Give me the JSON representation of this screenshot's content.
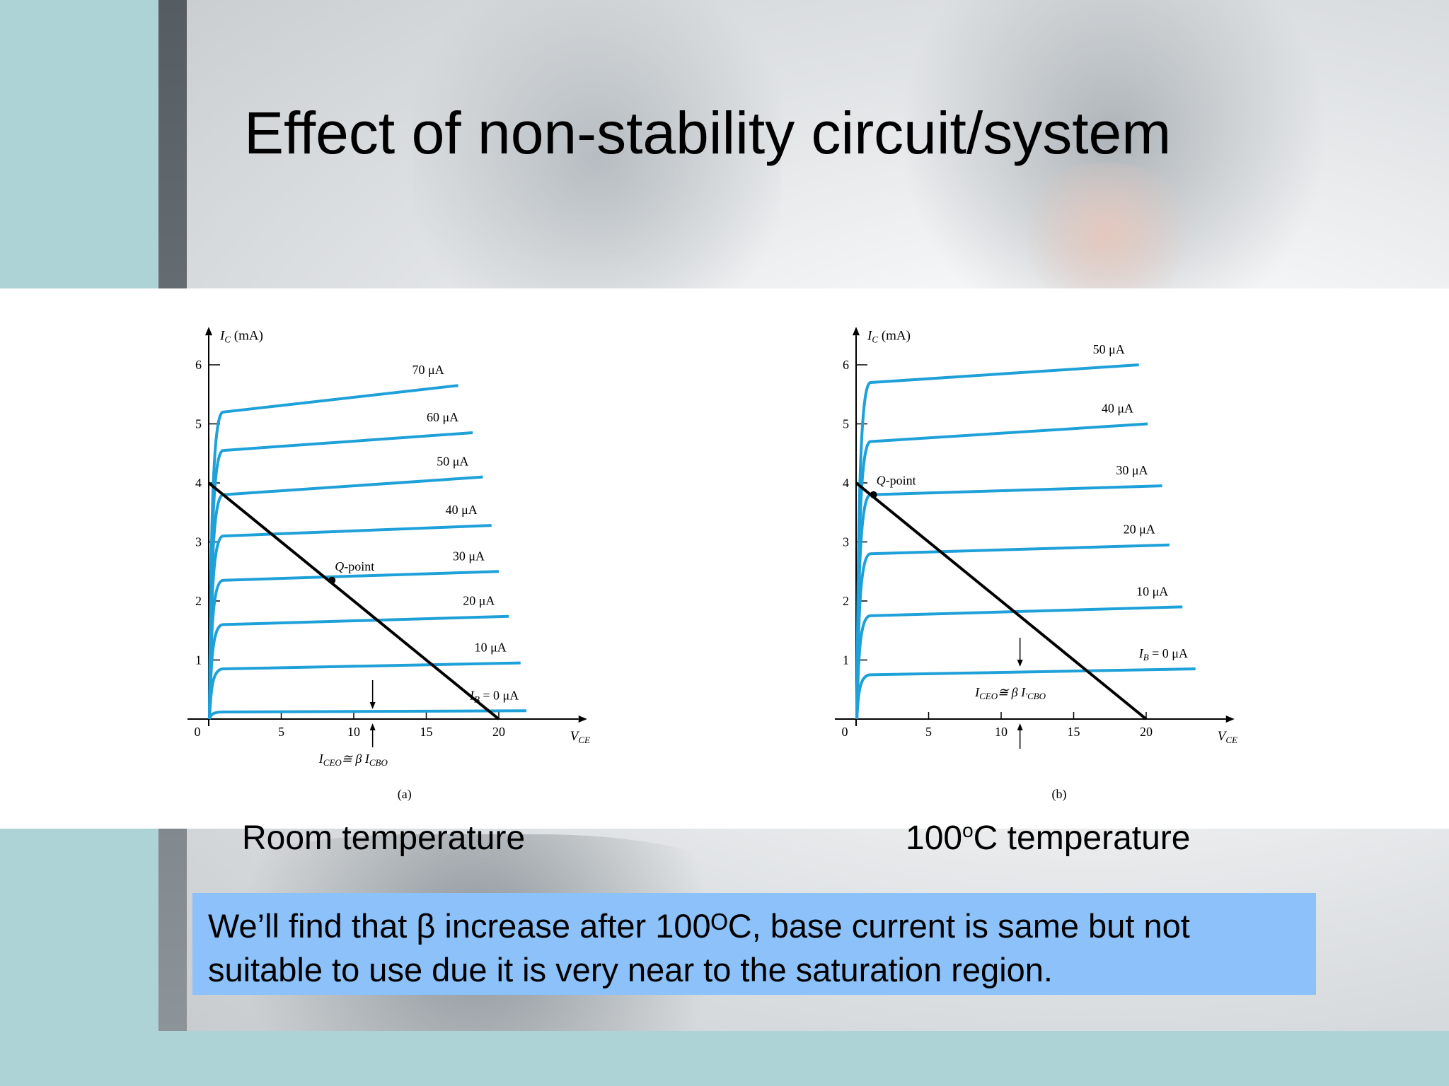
{
  "slide": {
    "title": "Effect of non-stability circuit/system",
    "caption_left": "Room temperature",
    "caption_right_prefix": "100",
    "caption_right_sup": "o",
    "caption_right_suffix": "C temperature",
    "note": "We’ll find that β increase after 100ᴼC, base current is same but not suitable to use due it is very near to the saturation region.",
    "colors": {
      "curve": "#1ea0d8",
      "load_line": "#000000",
      "note_bg": "#8cc1fa",
      "accent_band": "#aed3d6"
    }
  },
  "chart_data": [
    {
      "type": "line",
      "panel_label": "(a)",
      "ylabel_main": "I",
      "ylabel_sub": "C",
      "ylabel_unit": " (mA)",
      "xlabel_main": "V",
      "xlabel_sub": "CE",
      "x_ticks": [
        "0",
        "5",
        "10",
        "15",
        "20"
      ],
      "y_ticks": [
        "1",
        "2",
        "3",
        "4",
        "5",
        "6"
      ],
      "xlim": [
        0,
        25
      ],
      "ylim": [
        0,
        6.5
      ],
      "series": [
        {
          "name": "70 μA",
          "values": [
            5.2,
            5.65
          ]
        },
        {
          "name": "60 μA",
          "values": [
            4.55,
            4.85
          ]
        },
        {
          "name": "50 μA",
          "values": [
            3.8,
            4.1
          ]
        },
        {
          "name": "40 μA",
          "values": [
            3.1,
            3.28
          ]
        },
        {
          "name": "30 μA",
          "values": [
            2.35,
            2.5
          ]
        },
        {
          "name": "20 μA",
          "values": [
            1.6,
            1.74
          ]
        },
        {
          "name": "10 μA",
          "values": [
            0.85,
            0.95
          ]
        },
        {
          "name": "I_B = 0 μA",
          "values": [
            0.12,
            0.14
          ]
        }
      ],
      "load_line": {
        "ic_intercept": 4,
        "vce_intercept": 20
      },
      "q_point": {
        "label": "Q-point",
        "vce": 8.5,
        "ic": 2.35
      },
      "iceo_label": "I_CEO ≅ β I_CBO",
      "ib_label": {
        "i": "I",
        "sub": "B",
        "rest": " = 0 μA"
      },
      "iceo": {
        "i1": "I",
        "s1": "CEO",
        "mid": "≅ β I",
        "s2": "CBO"
      }
    },
    {
      "type": "line",
      "panel_label": "(b)",
      "ylabel_main": "I",
      "ylabel_sub": "C",
      "ylabel_unit": " (mA)",
      "xlabel_main": "V",
      "xlabel_sub": "CE",
      "x_ticks": [
        "0",
        "5",
        "10",
        "15",
        "20"
      ],
      "y_ticks": [
        "1",
        "2",
        "3",
        "4",
        "5",
        "6"
      ],
      "xlim": [
        0,
        25
      ],
      "ylim": [
        0,
        6.5
      ],
      "series": [
        {
          "name": "50 μA",
          "values": [
            5.7,
            6.0
          ]
        },
        {
          "name": "40 μA",
          "values": [
            4.7,
            5.0
          ]
        },
        {
          "name": "30 μA",
          "values": [
            3.8,
            3.95
          ]
        },
        {
          "name": "20 μA",
          "values": [
            2.8,
            2.95
          ]
        },
        {
          "name": "10 μA",
          "values": [
            1.75,
            1.9
          ]
        },
        {
          "name": "I_B = 0 μA",
          "values": [
            0.75,
            0.85
          ]
        }
      ],
      "load_line": {
        "ic_intercept": 4,
        "vce_intercept": 20
      },
      "q_point": {
        "label": "Q-point",
        "vce": 1.2,
        "ic": 3.8
      },
      "iceo_label": "I_CEO ≅ β I′_CBO",
      "ib_label": {
        "i": "I",
        "sub": "B",
        "rest": " = 0 μA"
      },
      "iceo": {
        "i1": "I",
        "s1": "CEO",
        "mid": "≅ β I",
        "s2": "′CBO"
      }
    }
  ]
}
